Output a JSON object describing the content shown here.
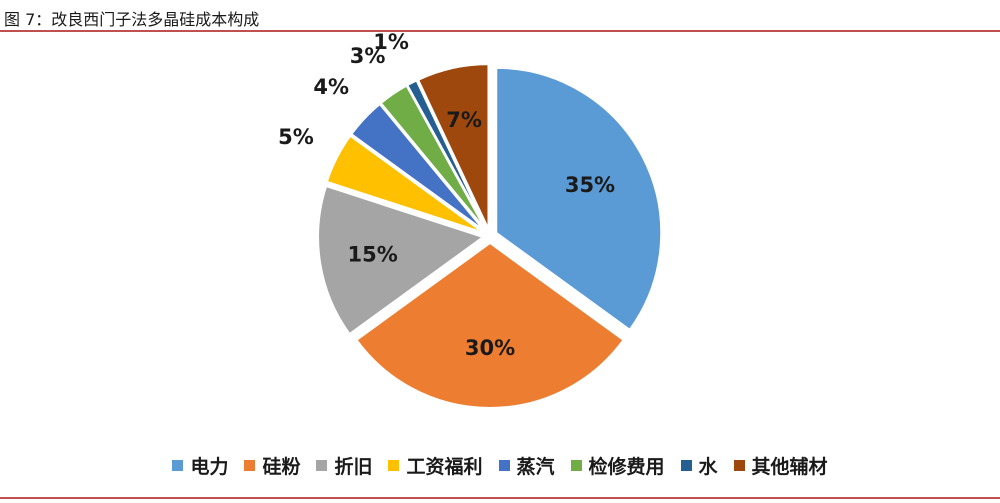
{
  "title": "图 7：改良西门子法多晶硅成本构成",
  "chart_data": {
    "type": "pie",
    "slices": [
      {
        "label": "电力",
        "value": 35,
        "text": "35%",
        "color": "#5b9bd5"
      },
      {
        "label": "硅粉",
        "value": 30,
        "text": "30%",
        "color": "#ed7d31"
      },
      {
        "label": "折旧",
        "value": 15,
        "text": "15%",
        "color": "#a5a5a5"
      },
      {
        "label": "工资福利",
        "value": 5,
        "text": "5%",
        "color": "#ffc000"
      },
      {
        "label": "蒸汽",
        "value": 4,
        "text": "4%",
        "color": "#4472c4"
      },
      {
        "label": "检修费用",
        "value": 3,
        "text": "3%",
        "color": "#70ad47"
      },
      {
        "label": "水",
        "value": 1,
        "text": "1%",
        "color": "#255e91"
      },
      {
        "label": "其他辅材",
        "value": 7,
        "text": "7%",
        "color": "#9e480e"
      }
    ],
    "legend_position": "bottom",
    "exploded": true
  }
}
